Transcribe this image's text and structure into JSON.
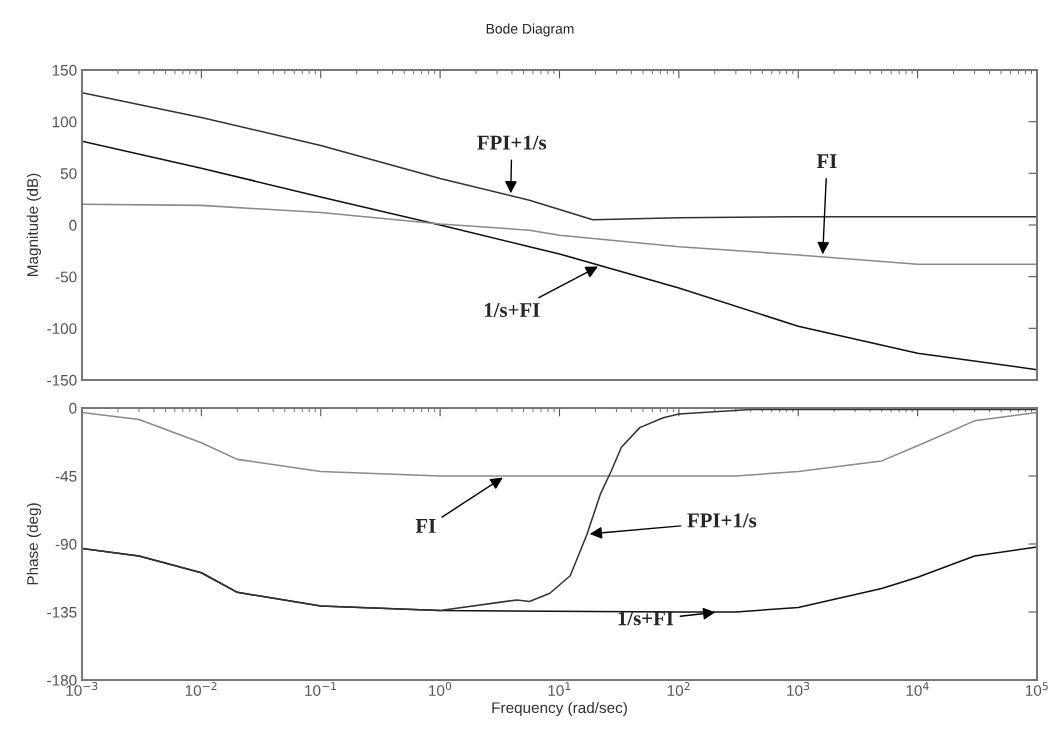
{
  "chart_data": [
    {
      "type": "line",
      "title": "Bode Diagram",
      "ylabel": "Magnitude (dB)",
      "log": "x",
      "grid": false,
      "tick_labels": "y",
      "xlim": [
        0.001,
        100000
      ],
      "xticks": [
        {
          "value": 0.001,
          "label": null
        },
        {
          "value": 0.01,
          "label": null
        },
        {
          "value": 0.1,
          "label": null
        },
        {
          "value": 1,
          "label": null
        },
        {
          "value": 10,
          "label": null
        },
        {
          "value": 100,
          "label": null
        },
        {
          "value": 1000,
          "label": null
        },
        {
          "value": 10000,
          "label": null
        },
        {
          "value": 100000,
          "label": null
        }
      ],
      "ylim": [
        -150,
        150
      ],
      "yticks": [
        -150,
        -100,
        -50,
        0,
        50,
        100,
        150
      ],
      "series": [
        {
          "color": "#333333",
          "x": [
            0.001,
            0.01,
            0.1,
            1,
            5.6,
            19,
            100,
            1000,
            10000,
            100000
          ],
          "values": [
            128,
            104,
            77,
            45,
            24,
            5,
            7,
            8,
            8,
            8
          ]
        },
        {
          "color": "#111111",
          "x": [
            0.001,
            0.01,
            0.1,
            1,
            5.6,
            10,
            100,
            1000,
            10000,
            100000
          ],
          "values": [
            81,
            55,
            27,
            0,
            -21,
            -28,
            -61,
            -98,
            -124,
            -140
          ]
        },
        {
          "color": "#8a8a8a",
          "x": [
            0.001,
            0.01,
            0.1,
            1,
            5.6,
            10,
            100,
            1000,
            10000,
            100000
          ],
          "values": [
            20,
            19,
            12,
            1,
            -5,
            -10,
            -21,
            -29,
            -38,
            -38
          ]
        }
      ],
      "annotations": [
        {
          "text": "FPI+1/s",
          "x": 3.9,
          "y": 28
        },
        {
          "text": "FI",
          "x": 1600,
          "y": -31
        },
        {
          "text": "1/s+FI",
          "x": 22,
          "y": -39
        }
      ]
    },
    {
      "type": "line",
      "ylabel": "Phase (deg)",
      "xlabel": "Frequency (rad/sec)",
      "log": "x",
      "grid": false,
      "xlim": [
        0.001,
        100000
      ],
      "xticks": [
        {
          "value": 0.001,
          "label": "10$^{−3}$"
        },
        {
          "value": 0.01,
          "label": "10$^{−2}$"
        },
        {
          "value": 0.1,
          "label": "10$^{−1}$"
        },
        {
          "value": 1,
          "label": "10$^{0}$"
        },
        {
          "value": 10,
          "label": "10$^{1}$"
        },
        {
          "value": 100,
          "label": "10$^{2}$"
        },
        {
          "value": 1000,
          "label": "10$^{3}$"
        },
        {
          "value": 10000,
          "label": "10$^{4}$"
        },
        {
          "value": 100000,
          "label": "10$^{5}$"
        }
      ],
      "ylim": [
        -180,
        0
      ],
      "yticks": [
        -180,
        -135,
        -90,
        -45,
        0
      ],
      "series": [
        {
          "color": "#8a8a8a",
          "x": [
            0.001,
            0.003,
            0.01,
            0.02,
            0.1,
            1,
            100,
            300,
            1000,
            5000,
            10000,
            30000,
            100000
          ],
          "values": [
            -3,
            -7.6,
            -23,
            -34,
            -42,
            -45,
            -45,
            -45,
            -42,
            -35,
            -25,
            -8.5,
            -3
          ]
        },
        {
          "color": "#111111",
          "x": [
            0.001,
            0.003,
            0.01,
            0.02,
            0.1,
            1,
            100,
            300,
            1000,
            5000,
            10000,
            30000,
            100000
          ],
          "values": [
            -93,
            -98,
            -109,
            -122,
            -131,
            -134,
            -135,
            -135,
            -132,
            -119.5,
            -112,
            -98,
            -92
          ]
        },
        {
          "color": "#333333",
          "x": [
            0.001,
            0.003,
            0.01,
            0.02,
            0.1,
            1,
            4.4,
            5.6,
            8.3,
            12.3,
            17,
            22,
            27,
            33,
            47,
            74,
            100,
            400,
            100000
          ],
          "values": [
            -93,
            -98,
            -109,
            -122,
            -131,
            -134,
            -127,
            -128,
            -122.6,
            -111,
            -83.5,
            -57,
            -42,
            -26,
            -13,
            -6.5,
            -4,
            -1,
            -1
          ]
        }
      ],
      "annotations": [
        {
          "text": "FI",
          "x": 3.5,
          "y": -45
        },
        {
          "text": "FPI+1/s",
          "x": 17,
          "y": -83.5
        },
        {
          "text": "1/s+FI",
          "x": 213,
          "y": -135
        }
      ]
    }
  ]
}
